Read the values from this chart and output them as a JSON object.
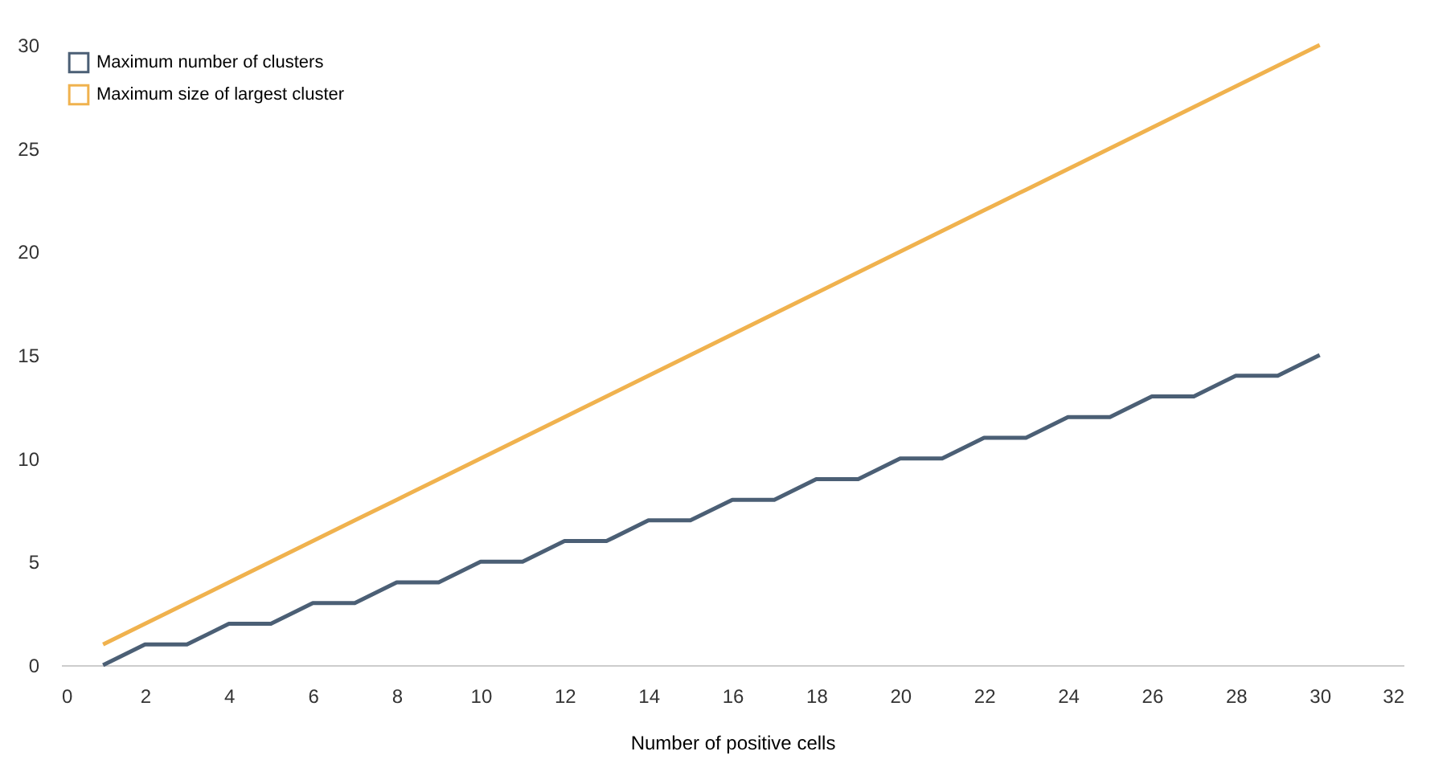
{
  "chart_data": {
    "type": "line",
    "xlabel": "Number of positive cells",
    "x": [
      1,
      2,
      3,
      4,
      5,
      6,
      7,
      8,
      9,
      10,
      11,
      12,
      13,
      14,
      15,
      16,
      17,
      18,
      19,
      20,
      21,
      22,
      23,
      24,
      25,
      26,
      27,
      28,
      29,
      30
    ],
    "series": [
      {
        "name": "Maximum number of clusters",
        "color": "#4b5f75",
        "values": [
          0,
          1,
          1,
          2,
          2,
          3,
          3,
          4,
          4,
          5,
          5,
          6,
          6,
          7,
          7,
          8,
          8,
          9,
          9,
          10,
          10,
          11,
          11,
          12,
          12,
          13,
          13,
          14,
          14,
          15
        ]
      },
      {
        "name": "Maximum size of largest cluster",
        "color": "#f0b24e",
        "values": [
          1,
          2,
          3,
          4,
          5,
          6,
          7,
          8,
          9,
          10,
          11,
          12,
          13,
          14,
          15,
          16,
          17,
          18,
          19,
          20,
          21,
          22,
          23,
          24,
          25,
          26,
          27,
          28,
          29,
          30
        ]
      }
    ],
    "xlim": [
      0,
      32
    ],
    "xticks": [
      0,
      2,
      4,
      6,
      8,
      10,
      12,
      14,
      16,
      18,
      20,
      22,
      24,
      26,
      28,
      30,
      32
    ],
    "ylim": [
      0,
      30
    ],
    "yticks": [
      0,
      5,
      10,
      15,
      20,
      25,
      30
    ],
    "legend": "top left"
  }
}
